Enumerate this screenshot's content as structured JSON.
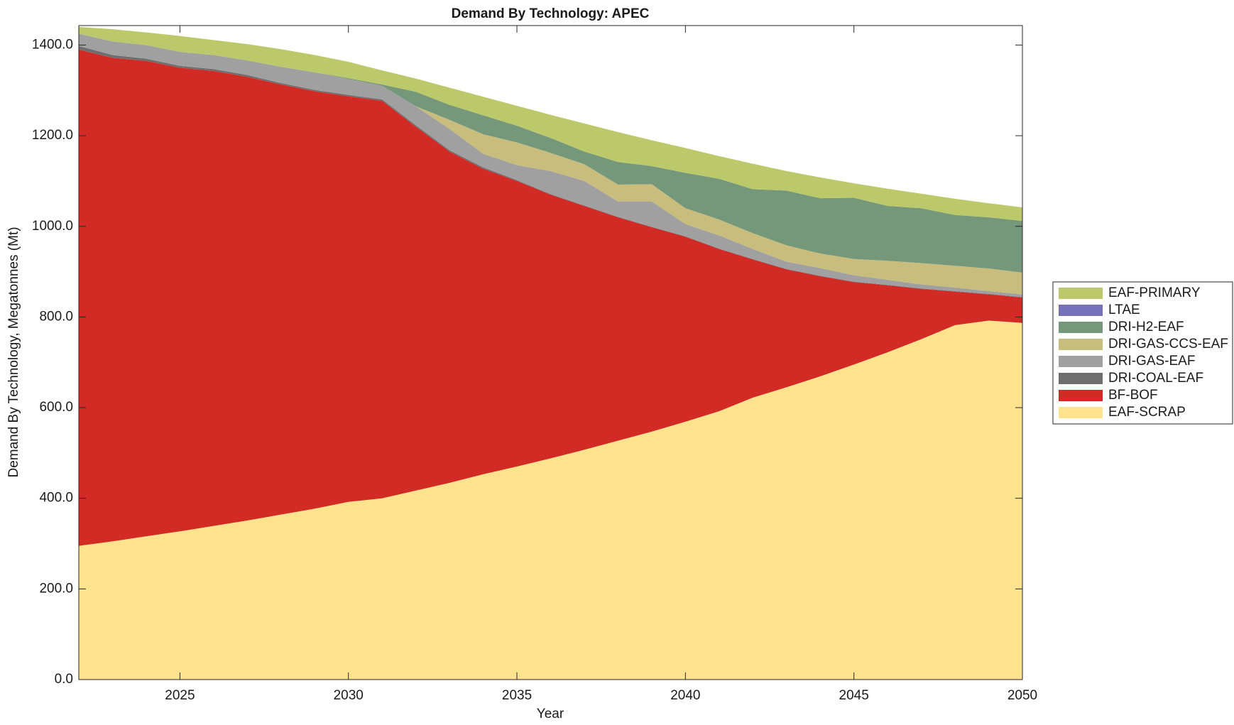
{
  "chart_data": {
    "type": "stacked-area",
    "title": "Demand By Technology: APEC",
    "x_label": "Year",
    "y_label": "Demand By Technology, Megatonnes (Mt)",
    "x": [
      2022,
      2023,
      2024,
      2025,
      2026,
      2027,
      2028,
      2029,
      2030,
      2031,
      2032,
      2033,
      2034,
      2035,
      2036,
      2037,
      2038,
      2039,
      2040,
      2041,
      2042,
      2043,
      2044,
      2045,
      2046,
      2047,
      2048,
      2049,
      2050
    ],
    "xlim": [
      2022,
      2050
    ],
    "xticks": [
      2025,
      2030,
      2035,
      2040,
      2045,
      2050
    ],
    "ylim": [
      0,
      1443
    ],
    "yticks": [
      {
        "value": 0,
        "label": "0.0"
      },
      {
        "value": 200,
        "label": "200.0"
      },
      {
        "value": 400,
        "label": "400.0"
      },
      {
        "value": 600,
        "label": "600.0"
      },
      {
        "value": 800,
        "label": "800.0"
      },
      {
        "value": 1000,
        "label": "1000.0"
      },
      {
        "value": 1200,
        "label": "1200.0"
      },
      {
        "value": 1400,
        "label": "1400.0"
      }
    ],
    "legend_position": "right",
    "series": [
      {
        "name": "EAF-SCRAP",
        "color": "#fee38f",
        "values": [
          295,
          305,
          316,
          327,
          339,
          351,
          364,
          377,
          392,
          400,
          417,
          434,
          453,
          470,
          488,
          507,
          527,
          547,
          569,
          592,
          622,
          645,
          669,
          695,
          722,
          751,
          782,
          792,
          787
        ]
      },
      {
        "name": "BF-BOF",
        "color": "#d22b25",
        "values": [
          1095,
          1067,
          1049,
          1023,
          1004,
          979,
          949,
          921,
          895,
          877,
          803,
          731,
          674,
          630,
          582,
          538,
          493,
          451,
          408,
          358,
          305,
          260,
          221,
          182,
          148,
          111,
          74,
          58,
          56
        ]
      },
      {
        "name": "DRI-COAL-EAF",
        "color": "#6e6e6e",
        "values": [
          8,
          6,
          5,
          4,
          4,
          4,
          3,
          3,
          3,
          3,
          3,
          3,
          3,
          2,
          1,
          1,
          1,
          1,
          1,
          1,
          1,
          1,
          1,
          1,
          1,
          1,
          1,
          1,
          1
        ]
      },
      {
        "name": "DRI-GAS-EAF",
        "color": "#a0a0a0",
        "values": [
          27,
          30,
          30,
          31,
          31,
          32,
          36,
          39,
          35,
          30,
          42,
          47,
          30,
          33,
          51,
          54,
          34,
          56,
          27,
          29,
          22,
          16,
          17,
          14,
          11,
          9,
          8,
          6,
          6
        ]
      },
      {
        "name": "DRI-GAS-CCS-EAF",
        "color": "#c8bd7d",
        "values": [
          0,
          0,
          0,
          0,
          0,
          0,
          0,
          0,
          0,
          0,
          0,
          20,
          43,
          50,
          40,
          37,
          37,
          38,
          35,
          35,
          35,
          36,
          32,
          36,
          42,
          47,
          48,
          50,
          48
        ]
      },
      {
        "name": "DRI-H2-EAF",
        "color": "#76987a",
        "values": [
          0,
          0,
          0,
          0,
          0,
          0,
          0,
          0,
          2,
          3,
          32,
          33,
          42,
          37,
          33,
          28,
          50,
          40,
          78,
          90,
          97,
          121,
          122,
          135,
          121,
          121,
          112,
          113,
          114
        ]
      },
      {
        "name": "LTAE",
        "color": "#7570b8",
        "values": [
          0,
          0,
          0,
          0,
          0,
          0,
          0,
          0,
          0,
          0,
          0,
          0,
          0,
          0,
          0,
          0,
          0,
          0,
          0,
          0,
          0,
          0,
          0,
          0,
          0,
          0,
          0,
          0,
          0
        ]
      },
      {
        "name": "EAF-PRIMARY",
        "color": "#bcc96b",
        "values": [
          15,
          27,
          28,
          35,
          33,
          36,
          39,
          38,
          36,
          31,
          29,
          38,
          41,
          44,
          51,
          62,
          66,
          57,
          55,
          50,
          56,
          43,
          46,
          32,
          38,
          32,
          36,
          31,
          30
        ]
      }
    ]
  }
}
